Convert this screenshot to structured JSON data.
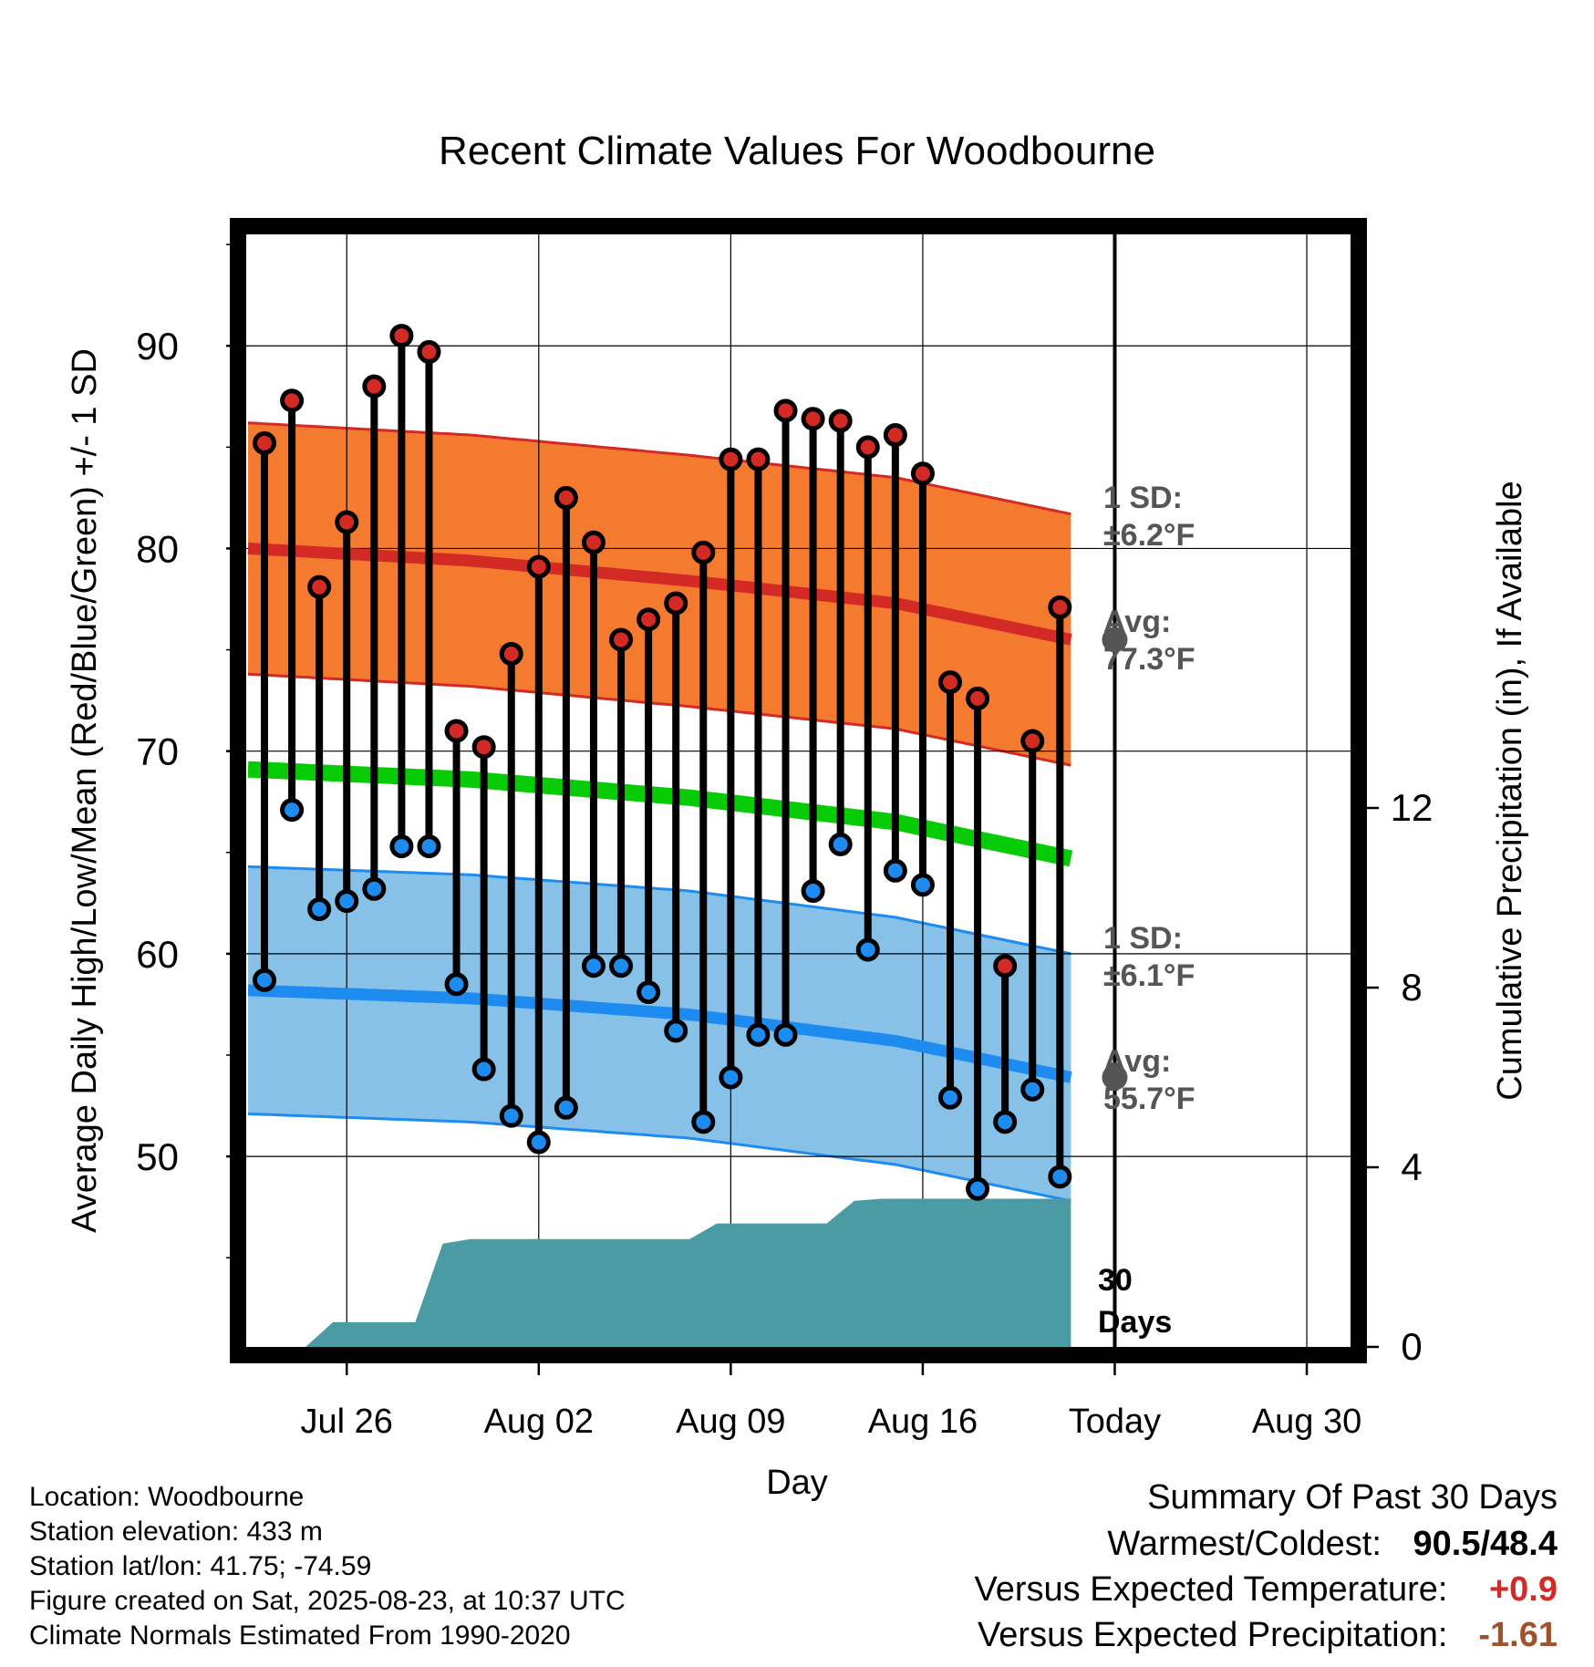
{
  "chart_data": {
    "type": "line",
    "title": "Recent Climate Values For Woodbourne",
    "xlabel": "Day",
    "ylabel": "Average Daily High/Low/Mean (Red/Blue/Green) +/- 1 SD",
    "y2label": "Cumulative Precipitation (in), If Available",
    "xrange": [
      "Jul 23",
      "Aug 31"
    ],
    "ylim": [
      40.6,
      95.5
    ],
    "y2lim": [
      0,
      20
    ],
    "grid": true,
    "x_tick_labels": [
      "Jul 26",
      "Aug 02",
      "Aug 09",
      "Aug 16",
      "Today",
      "Aug 30"
    ],
    "x_tick_dates": [
      "Jul 26",
      "Aug 02",
      "Aug 09",
      "Aug 16",
      "Aug 23",
      "Aug 30"
    ],
    "y_ticks": [
      50,
      60,
      70,
      80,
      90
    ],
    "y2_ticks": [
      0,
      4,
      8,
      12
    ],
    "today": "Aug 23",
    "highs": [
      {
        "date": "Jul 23",
        "value": 85.2
      },
      {
        "date": "Jul 24",
        "value": 87.3
      },
      {
        "date": "Jul 25",
        "value": 78.1
      },
      {
        "date": "Jul 26",
        "value": 81.3
      },
      {
        "date": "Jul 27",
        "value": 88.0
      },
      {
        "date": "Jul 28",
        "value": 90.5
      },
      {
        "date": "Jul 29",
        "value": 89.7
      },
      {
        "date": "Jul 30",
        "value": 71.0
      },
      {
        "date": "Jul 31",
        "value": 70.2
      },
      {
        "date": "Aug 01",
        "value": 74.8
      },
      {
        "date": "Aug 02",
        "value": 79.1
      },
      {
        "date": "Aug 03",
        "value": 82.5
      },
      {
        "date": "Aug 04",
        "value": 80.3
      },
      {
        "date": "Aug 05",
        "value": 75.5
      },
      {
        "date": "Aug 06",
        "value": 76.5
      },
      {
        "date": "Aug 07",
        "value": 77.3
      },
      {
        "date": "Aug 08",
        "value": 79.8
      },
      {
        "date": "Aug 09",
        "value": 84.4
      },
      {
        "date": "Aug 10",
        "value": 84.4
      },
      {
        "date": "Aug 11",
        "value": 86.8
      },
      {
        "date": "Aug 12",
        "value": 86.4
      },
      {
        "date": "Aug 13",
        "value": 86.3
      },
      {
        "date": "Aug 14",
        "value": 85.0
      },
      {
        "date": "Aug 15",
        "value": 85.6
      },
      {
        "date": "Aug 16",
        "value": 83.7
      },
      {
        "date": "Aug 17",
        "value": 73.4
      },
      {
        "date": "Aug 18",
        "value": 72.6
      },
      {
        "date": "Aug 19",
        "value": 59.4
      },
      {
        "date": "Aug 20",
        "value": 70.5
      },
      {
        "date": "Aug 21",
        "value": 77.1
      }
    ],
    "lows": [
      {
        "date": "Jul 23",
        "value": 58.7
      },
      {
        "date": "Jul 24",
        "value": 67.1
      },
      {
        "date": "Jul 25",
        "value": 62.2
      },
      {
        "date": "Jul 26",
        "value": 62.6
      },
      {
        "date": "Jul 27",
        "value": 63.2
      },
      {
        "date": "Jul 28",
        "value": 65.3
      },
      {
        "date": "Jul 29",
        "value": 65.3
      },
      {
        "date": "Jul 30",
        "value": 58.5
      },
      {
        "date": "Jul 31",
        "value": 54.3
      },
      {
        "date": "Aug 01",
        "value": 52.0
      },
      {
        "date": "Aug 02",
        "value": 50.7
      },
      {
        "date": "Aug 03",
        "value": 52.4
      },
      {
        "date": "Aug 04",
        "value": 59.4
      },
      {
        "date": "Aug 05",
        "value": 59.4
      },
      {
        "date": "Aug 06",
        "value": 58.1
      },
      {
        "date": "Aug 07",
        "value": 56.2
      },
      {
        "date": "Aug 08",
        "value": 51.7
      },
      {
        "date": "Aug 09",
        "value": 53.9
      },
      {
        "date": "Aug 10",
        "value": 56.0
      },
      {
        "date": "Aug 11",
        "value": 56.0
      },
      {
        "date": "Aug 12",
        "value": 63.1
      },
      {
        "date": "Aug 13",
        "value": 65.4
      },
      {
        "date": "Aug 14",
        "value": 60.2
      },
      {
        "date": "Aug 15",
        "value": 64.1
      },
      {
        "date": "Aug 16",
        "value": 63.4
      },
      {
        "date": "Aug 17",
        "value": 52.9
      },
      {
        "date": "Aug 18",
        "value": 48.4
      },
      {
        "date": "Aug 19",
        "value": 51.7
      },
      {
        "date": "Aug 20",
        "value": 53.3
      },
      {
        "date": "Aug 21",
        "value": 49.0
      }
    ],
    "normal_high": {
      "x": [
        -0.6,
        7.5,
        15.5,
        23.0,
        29.4
      ],
      "mean": [
        80.0,
        79.4,
        78.4,
        77.3,
        75.5
      ],
      "sd": 6.2
    },
    "normal_low": {
      "x": [
        -0.6,
        7.5,
        15.5,
        23.0,
        29.4
      ],
      "mean": [
        58.2,
        57.8,
        57.0,
        55.7,
        53.9
      ],
      "sd": 6.1
    },
    "normal_mean": {
      "x": [
        -0.6,
        7.5,
        15.5,
        23.0,
        29.4
      ],
      "values": [
        69.1,
        68.6,
        67.7,
        66.5,
        64.7
      ]
    },
    "precip_cumulative": {
      "x": [
        1.5,
        2.5,
        3.5,
        4.5,
        5.5,
        6.5,
        7.5,
        8.5,
        9.5,
        10.5,
        11.5,
        12.5,
        13.5,
        14.5,
        15.5,
        16.5,
        17.5,
        18.5,
        19.5,
        20.5,
        21.5,
        22.5,
        23.5,
        29.4
      ],
      "values": [
        0,
        0.55,
        0.55,
        0.55,
        0.55,
        2.3,
        2.4,
        2.4,
        2.4,
        2.4,
        2.4,
        2.4,
        2.4,
        2.4,
        2.4,
        2.75,
        2.75,
        2.75,
        2.75,
        2.75,
        3.25,
        3.3,
        3.3,
        3.3
      ]
    },
    "annotations": {
      "high_sd_label": [
        "1 SD:",
        "±6.2°F"
      ],
      "high_avg_label": [
        "Avg:",
        "77.3°F"
      ],
      "low_sd_label": [
        "1 SD:",
        "±6.1°F"
      ],
      "low_avg_label": [
        "Avg:",
        "55.7°F"
      ],
      "period_label": [
        "30",
        "Days"
      ]
    },
    "colors": {
      "high_band": "#f47a2f",
      "high_line": "#d42a25",
      "low_band": "#87c1e8",
      "low_line": "#1e8bf0",
      "mean_line": "#07cc05",
      "precip": "#4a9ba3",
      "high_dot": "#d42a25",
      "low_dot": "#1e8bf0",
      "today_dot": "#555555",
      "annotation": "#555555"
    }
  },
  "info": {
    "location": "Location: Woodbourne",
    "elevation": "Station elevation: 433 m",
    "latlon": "Station lat/lon: 41.75; -74.59",
    "created": "Figure created on Sat, 2025-08-23, at 10:37 UTC",
    "normals": "Climate Normals Estimated From 1990-2020"
  },
  "summary": {
    "heading": "Summary Of Past 30 Days",
    "warm_label": "Warmest/Coldest:",
    "warm_value": "90.5",
    "cold_value": "48.4",
    "temp_label": "Versus Expected Temperature:",
    "temp_value": "+0.9",
    "temp_color": "#d42a25",
    "precip_label": "Versus Expected Precipitation:",
    "precip_value": "-1.61",
    "precip_color": "#a0522d"
  }
}
